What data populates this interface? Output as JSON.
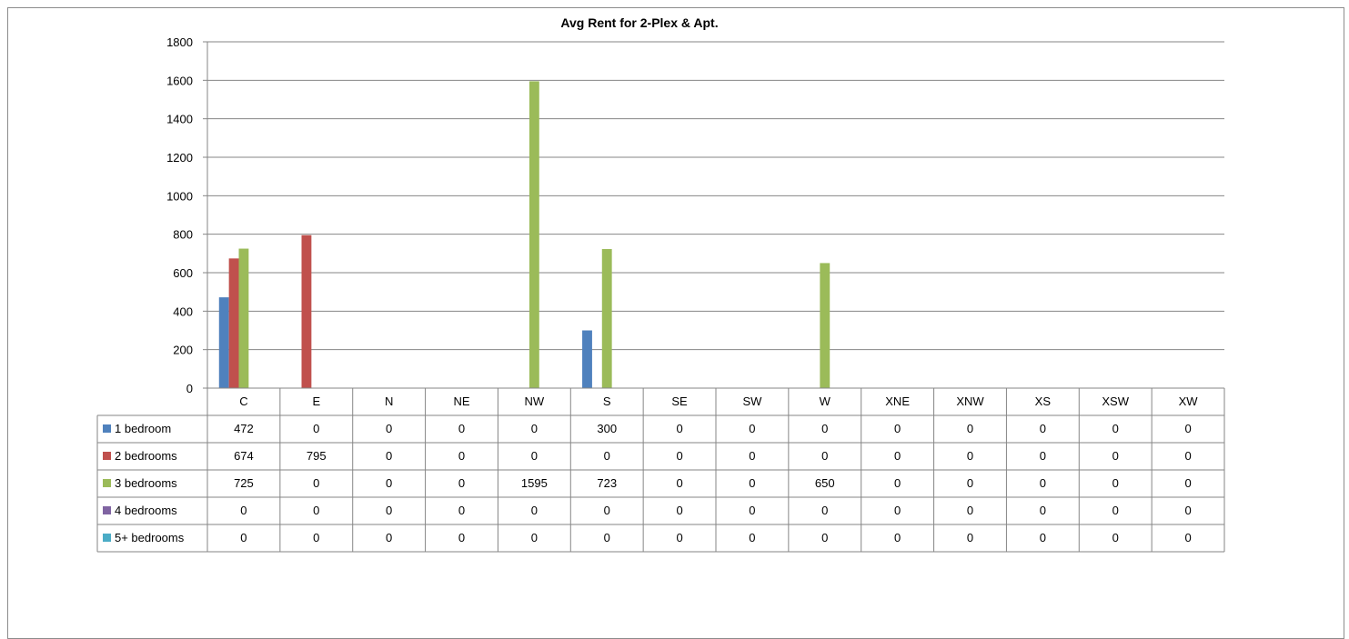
{
  "chart_data": {
    "type": "bar",
    "title": "Avg Rent for 2-Plex & Apt.",
    "categories": [
      "C",
      "E",
      "N",
      "NE",
      "NW",
      "S",
      "SE",
      "SW",
      "W",
      "XNE",
      "XNW",
      "XS",
      "XSW",
      "XW"
    ],
    "series": [
      {
        "name": "1 bedroom",
        "color": "#4f81bd",
        "values": [
          472,
          0,
          0,
          0,
          0,
          300,
          0,
          0,
          0,
          0,
          0,
          0,
          0,
          0
        ]
      },
      {
        "name": "2 bedrooms",
        "color": "#c0504d",
        "values": [
          674,
          795,
          0,
          0,
          0,
          0,
          0,
          0,
          0,
          0,
          0,
          0,
          0,
          0
        ]
      },
      {
        "name": "3 bedrooms",
        "color": "#9bbb59",
        "values": [
          725,
          0,
          0,
          0,
          1595,
          723,
          0,
          0,
          650,
          0,
          0,
          0,
          0,
          0
        ]
      },
      {
        "name": "4 bedrooms",
        "color": "#8064a2",
        "values": [
          0,
          0,
          0,
          0,
          0,
          0,
          0,
          0,
          0,
          0,
          0,
          0,
          0,
          0
        ]
      },
      {
        "name": "5+ bedrooms",
        "color": "#4bacc6",
        "values": [
          0,
          0,
          0,
          0,
          0,
          0,
          0,
          0,
          0,
          0,
          0,
          0,
          0,
          0
        ]
      }
    ],
    "ylim": [
      0,
      1800
    ],
    "yticks": [
      0,
      200,
      400,
      600,
      800,
      1000,
      1200,
      1400,
      1600,
      1800
    ],
    "grid": true,
    "legend": "data-table"
  }
}
